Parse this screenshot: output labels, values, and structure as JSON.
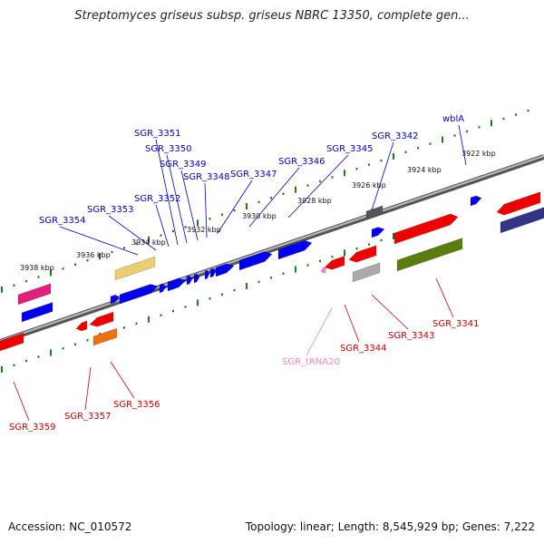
{
  "title": "Streptomyces griseus subsp. griseus NBRC 13350, complete gen...",
  "footer": {
    "accession": "Accession: NC_010572",
    "stats": "Topology: linear; Length: 8,545,929 bp; Genes: 7,222"
  },
  "colors": {
    "upper_label": "#0000cc",
    "lower_label": "#cc0000",
    "trna_label": "#ee88bb",
    "ruler": "#1e7d1e",
    "backbone": "#777777"
  },
  "scale": {
    "ticks": [
      "3922 kbp",
      "3924 kbp",
      "3926 kbp",
      "3928 kbp",
      "3930 kbp",
      "3932 kbp",
      "3934 kbp",
      "3936 kbp",
      "3938 kbp"
    ]
  },
  "upper_genes": [
    "wblA",
    "SGR_3342",
    "SGR_3345",
    "SGR_3346",
    "SGR_3347",
    "SGR_3348",
    "SGR_3349",
    "SGR_3350",
    "SGR_3351",
    "SGR_3352",
    "SGR_3353",
    "SGR_3354"
  ],
  "lower_genes": [
    "SGR_3341",
    "SGR_3343",
    "SGR_3344",
    "SGR_tRNA20",
    "SGR_3356",
    "SGR_3357",
    "SGR_3359"
  ]
}
